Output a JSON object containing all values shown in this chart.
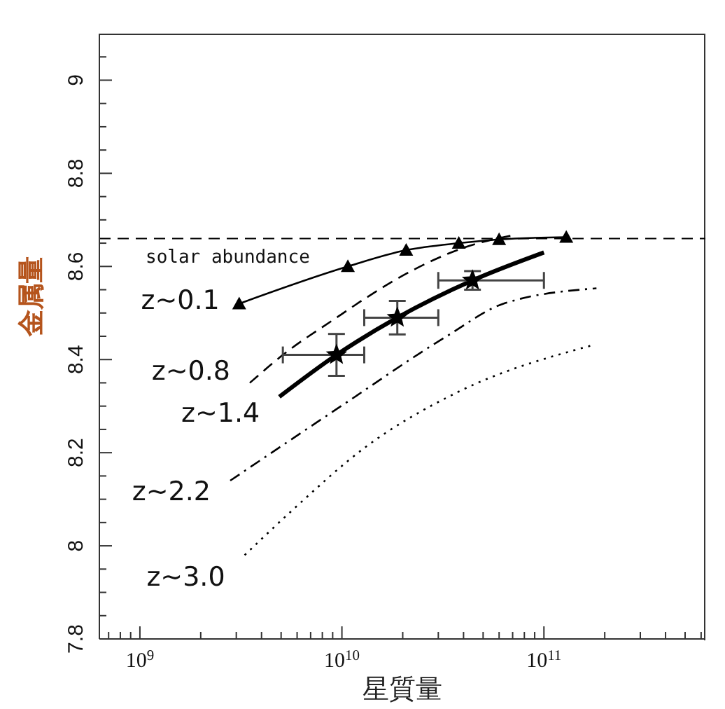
{
  "chart_data": {
    "type": "line",
    "xlabel": "星質量",
    "ylabel": "金属量",
    "log": "x",
    "xlim": [
      630000000.0,
      630000000000.0
    ],
    "ylim": [
      7.8,
      9.1
    ],
    "xticks": [
      {
        "value": 700000000.0,
        "label": null
      },
      {
        "value": 800000000.0,
        "label": null
      },
      {
        "value": 900000000.0,
        "label": null
      },
      {
        "value": 1000000000.0,
        "label": "10$^{9}$"
      },
      {
        "value": 2000000000.0,
        "label": null
      },
      {
        "value": 3000000000.0,
        "label": null
      },
      {
        "value": 4000000000.0,
        "label": null
      },
      {
        "value": 5000000000.0,
        "label": null
      },
      {
        "value": 6000000000.0,
        "label": null
      },
      {
        "value": 7000000000.0,
        "label": null
      },
      {
        "value": 8000000000.0,
        "label": null
      },
      {
        "value": 9000000000.0,
        "label": null
      },
      {
        "value": 10000000000.0,
        "label": "10$^{10}$"
      },
      {
        "value": 20000000000.0,
        "label": null
      },
      {
        "value": 30000000000.0,
        "label": null
      },
      {
        "value": 40000000000.0,
        "label": null
      },
      {
        "value": 50000000000.0,
        "label": null
      },
      {
        "value": 60000000000.0,
        "label": null
      },
      {
        "value": 70000000000.0,
        "label": null
      },
      {
        "value": 80000000000.0,
        "label": null
      },
      {
        "value": 90000000000.0,
        "label": null
      },
      {
        "value": 100000000000.0,
        "label": "10$^{11}$"
      },
      {
        "value": 200000000000.0,
        "label": null
      },
      {
        "value": 300000000000.0,
        "label": null
      },
      {
        "value": 400000000000.0,
        "label": null
      },
      {
        "value": 500000000000.0,
        "label": null
      },
      {
        "value": 600000000000.0,
        "label": null
      }
    ],
    "yticks": [
      7.8,
      {
        "value": 7.85,
        "label": null
      },
      {
        "value": 7.9,
        "label": null
      },
      {
        "value": 7.95,
        "label": null
      },
      8,
      {
        "value": 8.05,
        "label": null
      },
      {
        "value": 8.1,
        "label": null
      },
      {
        "value": 8.15,
        "label": null
      },
      8.2,
      {
        "value": 8.25,
        "label": null
      },
      {
        "value": 8.3,
        "label": null
      },
      {
        "value": 8.35,
        "label": null
      },
      8.4,
      {
        "value": 8.45,
        "label": null
      },
      {
        "value": 8.5,
        "label": null
      },
      {
        "value": 8.55,
        "label": null
      },
      8.6,
      {
        "value": 8.65,
        "label": null
      },
      {
        "value": 8.7,
        "label": null
      },
      {
        "value": 8.75,
        "label": null
      },
      8.8,
      {
        "value": 8.85,
        "label": null
      },
      {
        "value": 8.9,
        "label": null
      },
      {
        "value": 8.95,
        "label": null
      },
      9,
      {
        "value": 9.05,
        "label": null
      }
    ],
    "ref_lines": [
      {
        "axis": "y",
        "value": 8.66,
        "label": "solar abundance",
        "line_style": "dashed",
        "color": "#000000"
      }
    ],
    "series": [
      {
        "name": "z~0.1",
        "color": "#000000",
        "marker": "triangle",
        "line_style": "solid",
        "x": [
          3100000000.0,
          10700000000.0,
          20800000000.0,
          37900000000.0,
          60000000000.0,
          129000000000.0
        ],
        "values": [
          8.52,
          8.6,
          8.635,
          8.65,
          8.658,
          8.663
        ]
      },
      {
        "name": "z~0.8",
        "color": "#000000",
        "marker": "none",
        "line_style": "dashed",
        "x": [
          3500000000.0,
          5100000000.0,
          9400000000.0,
          12900000000.0,
          22000000000.0,
          40000000000.0,
          70000000000.0
        ],
        "values": [
          8.35,
          8.41,
          8.49,
          8.53,
          8.59,
          8.64,
          8.667
        ]
      },
      {
        "name": "z~1.4",
        "color": "#000000",
        "marker": "none",
        "line_style": "solid",
        "x": [
          4900000000.0,
          9400000000.0,
          18800000000.0,
          44300000000.0,
          100000000000.0
        ],
        "values": [
          8.32,
          8.41,
          8.49,
          8.57,
          8.63
        ]
      },
      {
        "type": "scatter",
        "color": "#000000",
        "marker": "star",
        "x": [
          9400000000.0,
          18800000000.0,
          44300000000.0
        ],
        "values": [
          8.41,
          8.49,
          8.57
        ],
        "errors": [
          0.045,
          0.036,
          0.02
        ],
        "xerrors": [
          [
            5100000000.0,
            12900000000.0
          ],
          [
            12900000000.0,
            30000000000.0
          ],
          [
            30000000000.0,
            100000000000.0
          ]
        ]
      },
      {
        "name": "z~2.2",
        "color": "#000000",
        "marker": "none",
        "line_style": "dashdot",
        "x": [
          2800000000.0,
          9900000000.0,
          33000000000.0,
          63000000000.0,
          182000000000.0
        ],
        "values": [
          8.14,
          8.3,
          8.45,
          8.52,
          8.553
        ]
      },
      {
        "name": "z~3.0",
        "color": "#000000",
        "marker": "none",
        "line_style": "dotted",
        "x": [
          3300000000.0,
          5800000000.0,
          12900000000.0,
          37400000000.0,
          171000000000.0
        ],
        "values": [
          7.98,
          8.08,
          8.21,
          8.33,
          8.43
        ]
      }
    ]
  }
}
